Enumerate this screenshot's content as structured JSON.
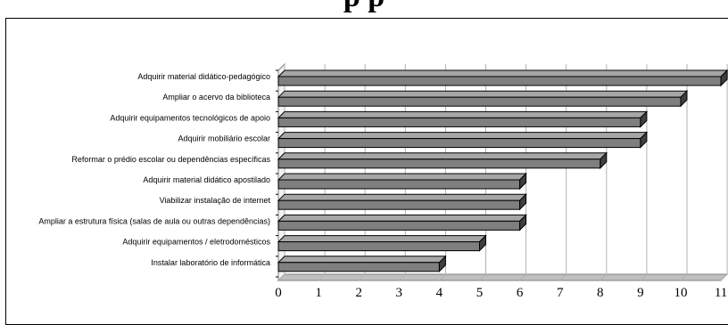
{
  "title": "",
  "title_fragment": "p   p",
  "colors": {
    "bar_face": "#7f7f7f",
    "bar_top": "#a6a6a6",
    "bar_end": "#3f3f3f",
    "grid": "#b3b3b3",
    "wall": "#808080",
    "floor": "#c0c0c0"
  },
  "chart_data": {
    "type": "bar",
    "orientation": "horizontal",
    "style": "3d",
    "title": "",
    "xlabel": "",
    "ylabel": "",
    "xlim": [
      0,
      11
    ],
    "xticks": [
      0,
      1,
      2,
      3,
      4,
      5,
      6,
      7,
      8,
      9,
      10,
      11
    ],
    "grid": true,
    "legend": "none",
    "categories": [
      "Adquirir material didático-pedagógico",
      "Ampliar o acervo da biblioteca",
      "Adquirir equipamentos tecnológicos de apoio",
      "Adquirir mobiliário escolar",
      "Reformar o prédio escolar ou dependências específicas",
      "Adquirir material didático apostilado",
      "Viabilizar instalação de internet",
      "Ampliar a estrutura física (salas  de aula ou outras dependências)",
      "Adquirir equipamentos / eletrodomésticos",
      "Instalar laboratório de informática"
    ],
    "values": [
      11,
      10,
      9,
      9,
      8,
      6,
      6,
      6,
      5,
      4
    ]
  }
}
